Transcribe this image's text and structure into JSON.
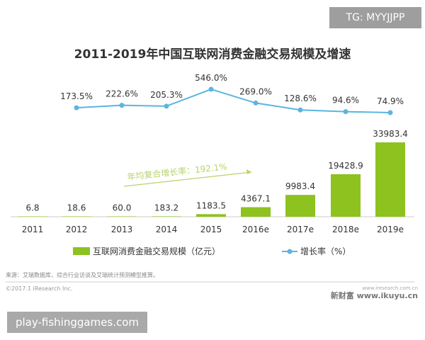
{
  "watermark_top": "TG: MYYJJPP",
  "watermark_bottom": "play-fishinggames.com",
  "source_note": "来源：艾瑞数据库，综合行业访谈及艾瑞统计预测模型推算。",
  "copyright": "©2017.1 iResearch Inc.",
  "logo_small": "www.iresearch.com.cn",
  "logo_main": "新财富 www.ikuyu.cn",
  "colors": {
    "bar": "#8dc21f",
    "line": "#5bb5e0",
    "annotation": "#b7d36a"
  },
  "chart_data": {
    "type": "bar+line",
    "title": "2011-2019年中国互联网消费金融交易规模及增速",
    "categories": [
      "2011",
      "2012",
      "2013",
      "2014",
      "2015",
      "2016e",
      "2017e",
      "2018e",
      "2019e"
    ],
    "series": [
      {
        "name": "互联网消费金融交易规模（亿元）",
        "type": "bar",
        "values": [
          6.8,
          18.6,
          60.0,
          183.2,
          1183.5,
          4367.1,
          9983.4,
          19428.9,
          33983.4
        ],
        "labels": [
          "6.8",
          "18.6",
          "60.0",
          "183.2",
          "1183.5",
          "4367.1",
          "9983.4",
          "19428.9",
          "33983.4"
        ]
      },
      {
        "name": "增长率（%）",
        "type": "line",
        "values": [
          null,
          173.5,
          222.6,
          205.3,
          546.0,
          269.0,
          128.6,
          94.6,
          74.9
        ],
        "labels": [
          "",
          "173.5%",
          "222.6%",
          "205.3%",
          "546.0%",
          "269.0%",
          "128.6%",
          "94.6%",
          "74.9%"
        ]
      }
    ],
    "annotation": "年均复合增长率：192.1%",
    "legend_position": "bottom",
    "grid": false
  }
}
